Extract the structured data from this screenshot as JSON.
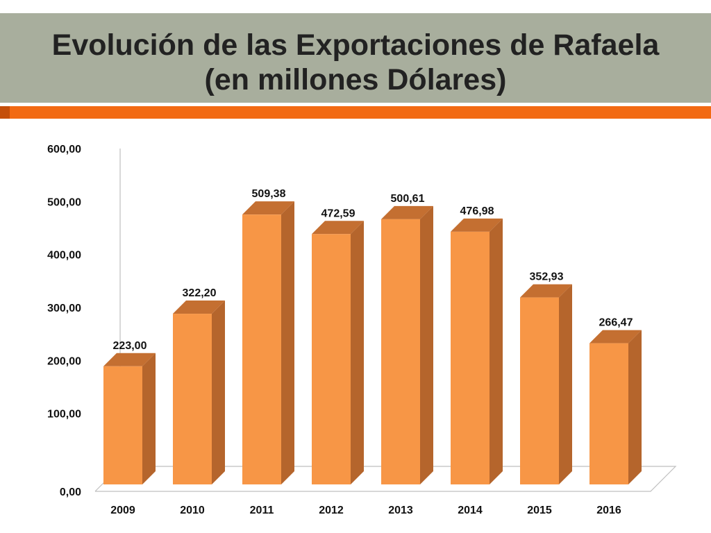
{
  "slide": {
    "title_line1": "Evolución de las Exportaciones de Rafaela",
    "title_line2": "(en millones Dólares)"
  },
  "colors": {
    "title_band": "#a8ae9d",
    "accent_strip": "#f26a13",
    "accent_strip_dark": "#c44f0a",
    "bar_front": "#f79646",
    "bar_side": "#b5652c",
    "bar_top": "#c46f31",
    "axis": "#bfbfbf",
    "text": "#111111"
  },
  "chart_data": {
    "type": "bar",
    "style": "3d-column",
    "categories": [
      "2009",
      "2010",
      "2011",
      "2012",
      "2013",
      "2014",
      "2015",
      "2016"
    ],
    "values": [
      223.0,
      322.2,
      509.38,
      472.59,
      500.61,
      476.98,
      352.93,
      266.47
    ],
    "value_labels": [
      "223,00",
      "322,20",
      "509,38",
      "472,59",
      "500,61",
      "476,98",
      "352,93",
      "266,47"
    ],
    "y_ticks": [
      0,
      100,
      200,
      300,
      400,
      500,
      600
    ],
    "y_tick_labels": [
      "0,00",
      "100,00",
      "200,00",
      "300,00",
      "400,00",
      "500,00",
      "600,00"
    ],
    "ylim": [
      0,
      600
    ],
    "grid": false,
    "legend": "none"
  }
}
